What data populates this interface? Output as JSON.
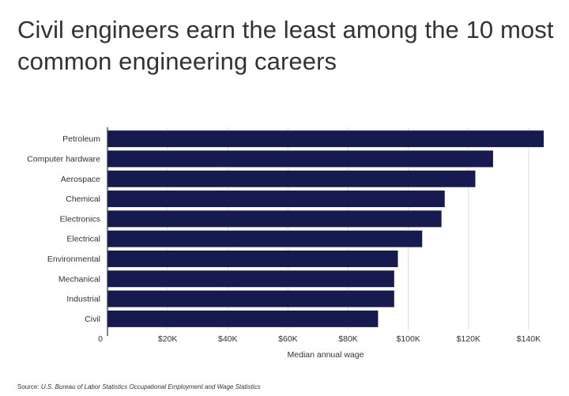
{
  "title": "Civil engineers earn the least among the 10 most common engineering careers",
  "source": {
    "label": "Source:",
    "text": "U.S. Bureau of Labor Statistics Occupational Employment and Wage Statistics"
  },
  "colors": {
    "bar": "#161a4f",
    "text": "#333333",
    "axis": "#333333",
    "grid": "#dcdcdc"
  },
  "chart_data": {
    "type": "bar",
    "orientation": "horizontal",
    "title": "Civil engineers earn the least among the 10 most common engineering careers",
    "xlabel": "Median annual wage",
    "ylabel": "",
    "categories": [
      "Petroleum",
      "Computer hardware",
      "Aerospace",
      "Chemical",
      "Electronics",
      "Electrical",
      "Environmental",
      "Mechanical",
      "Industrial",
      "Civil"
    ],
    "values": [
      145720,
      128170,
      122270,
      112100,
      111020,
      104610,
      96530,
      95300,
      95300,
      89940
    ],
    "xlim": [
      0,
      145000
    ],
    "xticks": [
      0,
      20000,
      40000,
      60000,
      80000,
      100000,
      120000,
      140000
    ],
    "xtick_labels": [
      "0",
      "$20K",
      "$40K",
      "$60K",
      "$80K",
      "$100K",
      "$120K",
      "$140K"
    ],
    "grid": true,
    "legend": "none"
  }
}
